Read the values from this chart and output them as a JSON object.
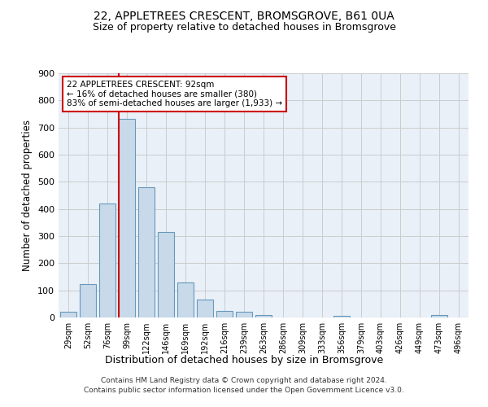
{
  "title1": "22, APPLETREES CRESCENT, BROMSGROVE, B61 0UA",
  "title2": "Size of property relative to detached houses in Bromsgrove",
  "xlabel": "Distribution of detached houses by size in Bromsgrove",
  "ylabel": "Number of detached properties",
  "categories": [
    "29sqm",
    "52sqm",
    "76sqm",
    "99sqm",
    "122sqm",
    "146sqm",
    "169sqm",
    "192sqm",
    "216sqm",
    "239sqm",
    "263sqm",
    "286sqm",
    "309sqm",
    "333sqm",
    "356sqm",
    "379sqm",
    "403sqm",
    "426sqm",
    "449sqm",
    "473sqm",
    "496sqm"
  ],
  "values": [
    20,
    122,
    420,
    733,
    479,
    315,
    130,
    65,
    25,
    20,
    10,
    0,
    0,
    0,
    7,
    0,
    0,
    0,
    0,
    8,
    0
  ],
  "bar_color": "#c8daea",
  "bar_edge_color": "#6699bb",
  "grid_color": "#cccccc",
  "vline_color": "#cc0000",
  "annotation_text": "22 APPLETREES CRESCENT: 92sqm\n← 16% of detached houses are smaller (380)\n83% of semi-detached houses are larger (1,933) →",
  "annotation_box_color": "#cc0000",
  "ylim": [
    0,
    900
  ],
  "yticks": [
    0,
    100,
    200,
    300,
    400,
    500,
    600,
    700,
    800,
    900
  ],
  "footer1": "Contains HM Land Registry data © Crown copyright and database right 2024.",
  "footer2": "Contains public sector information licensed under the Open Government Licence v3.0.",
  "bg_color": "#eaf0f8"
}
